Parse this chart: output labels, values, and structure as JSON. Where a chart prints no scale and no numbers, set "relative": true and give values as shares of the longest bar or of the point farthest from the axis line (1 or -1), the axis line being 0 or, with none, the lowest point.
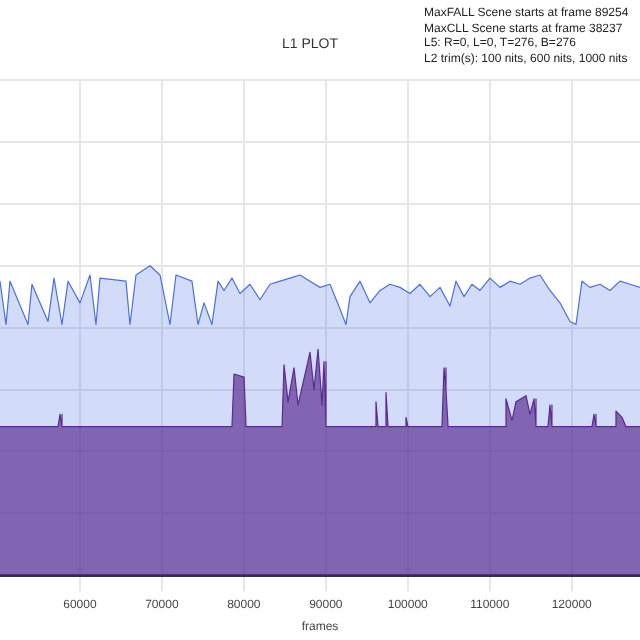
{
  "chart_data": {
    "type": "area",
    "title": "L1 PLOT",
    "xlabel": "frames",
    "annotations": [
      "MaxFALL Scene starts at frame 89254",
      "MaxCLL Scene starts at frame 38237",
      "L5: R=0, L=0, T=276, B=276",
      "L2 trim(s): 100 nits, 600 nits, 1000 nits"
    ],
    "relative": true,
    "grid": true,
    "legend": false,
    "xlim": [
      50250,
      128330
    ],
    "xticks": [
      60000,
      70000,
      80000,
      90000,
      100000,
      110000,
      120000
    ],
    "series": [
      {
        "color": "#4a70e0",
        "x": [
          50250,
          50980,
          51470,
          53670,
          54150,
          56110,
          56840,
          57810,
          58550,
          60010,
          61230,
          61960,
          62450,
          65620,
          66110,
          66840,
          68550,
          69770,
          70990,
          71720,
          73670,
          74410,
          75140,
          76110,
          76850,
          77580,
          78550,
          79530,
          80750,
          81970,
          83190,
          84410,
          85630,
          86850,
          88070,
          89290,
          90510,
          91730,
          92460,
          92950,
          94170,
          95390,
          96610,
          97830,
          99050,
          100270,
          101490,
          102710,
          103930,
          105150,
          105880,
          106860,
          107830,
          108810,
          110030,
          111250,
          112470,
          113690,
          114910,
          116130,
          117350,
          118570,
          119790,
          120520,
          121250,
          122230,
          123450,
          124670,
          125890,
          127110,
          128330
        ],
        "values": [
          0.95,
          0.81,
          0.95,
          0.81,
          0.94,
          0.82,
          0.96,
          0.81,
          0.95,
          0.88,
          0.97,
          0.81,
          0.96,
          0.95,
          0.81,
          0.97,
          1,
          0.97,
          0.81,
          0.97,
          0.95,
          0.81,
          0.88,
          0.81,
          0.95,
          0.92,
          0.96,
          0.91,
          0.94,
          0.89,
          0.94,
          0.95,
          0.96,
          0.97,
          0.95,
          0.93,
          0.94,
          0.86,
          0.81,
          0.9,
          0.95,
          0.88,
          0.92,
          0.94,
          0.93,
          0.91,
          0.94,
          0.9,
          0.93,
          0.87,
          0.95,
          0.9,
          0.94,
          0.92,
          0.96,
          0.93,
          0.95,
          0.94,
          0.96,
          0.97,
          0.92,
          0.88,
          0.82,
          0.81,
          0.95,
          0.93,
          0.94,
          0.92,
          0.95,
          0.94,
          0.93
        ]
      },
      {
        "color": "#5a2a90",
        "x": [
          50250,
          57330,
          57570,
          57810,
          78550,
          78800,
          80020,
          80270,
          84660,
          84900,
          85390,
          86120,
          86610,
          88070,
          88560,
          89050,
          89540,
          89780,
          90020,
          95880,
          96120,
          96370,
          97100,
          97340,
          97590,
          99540,
          99780,
          100020,
          104170,
          104420,
          104660,
          104910,
          111740,
          111980,
          112720,
          113200,
          114420,
          114910,
          115400,
          115640,
          117100,
          117350,
          117590,
          122470,
          122720,
          122960,
          125160,
          125400,
          126130,
          126620,
          128330
        ],
        "values": [
          0.48,
          0.48,
          0.52,
          0.48,
          0.48,
          0.65,
          0.64,
          0.48,
          0.48,
          0.68,
          0.56,
          0.67,
          0.55,
          0.72,
          0.6,
          0.73,
          0.55,
          0.69,
          0.48,
          0.48,
          0.56,
          0.48,
          0.48,
          0.59,
          0.48,
          0.48,
          0.51,
          0.48,
          0.48,
          0.67,
          0.6,
          0.48,
          0.48,
          0.57,
          0.5,
          0.56,
          0.58,
          0.52,
          0.57,
          0.48,
          0.48,
          0.55,
          0.48,
          0.48,
          0.52,
          0.48,
          0.48,
          0.53,
          0.51,
          0.48,
          0.48
        ]
      }
    ]
  }
}
